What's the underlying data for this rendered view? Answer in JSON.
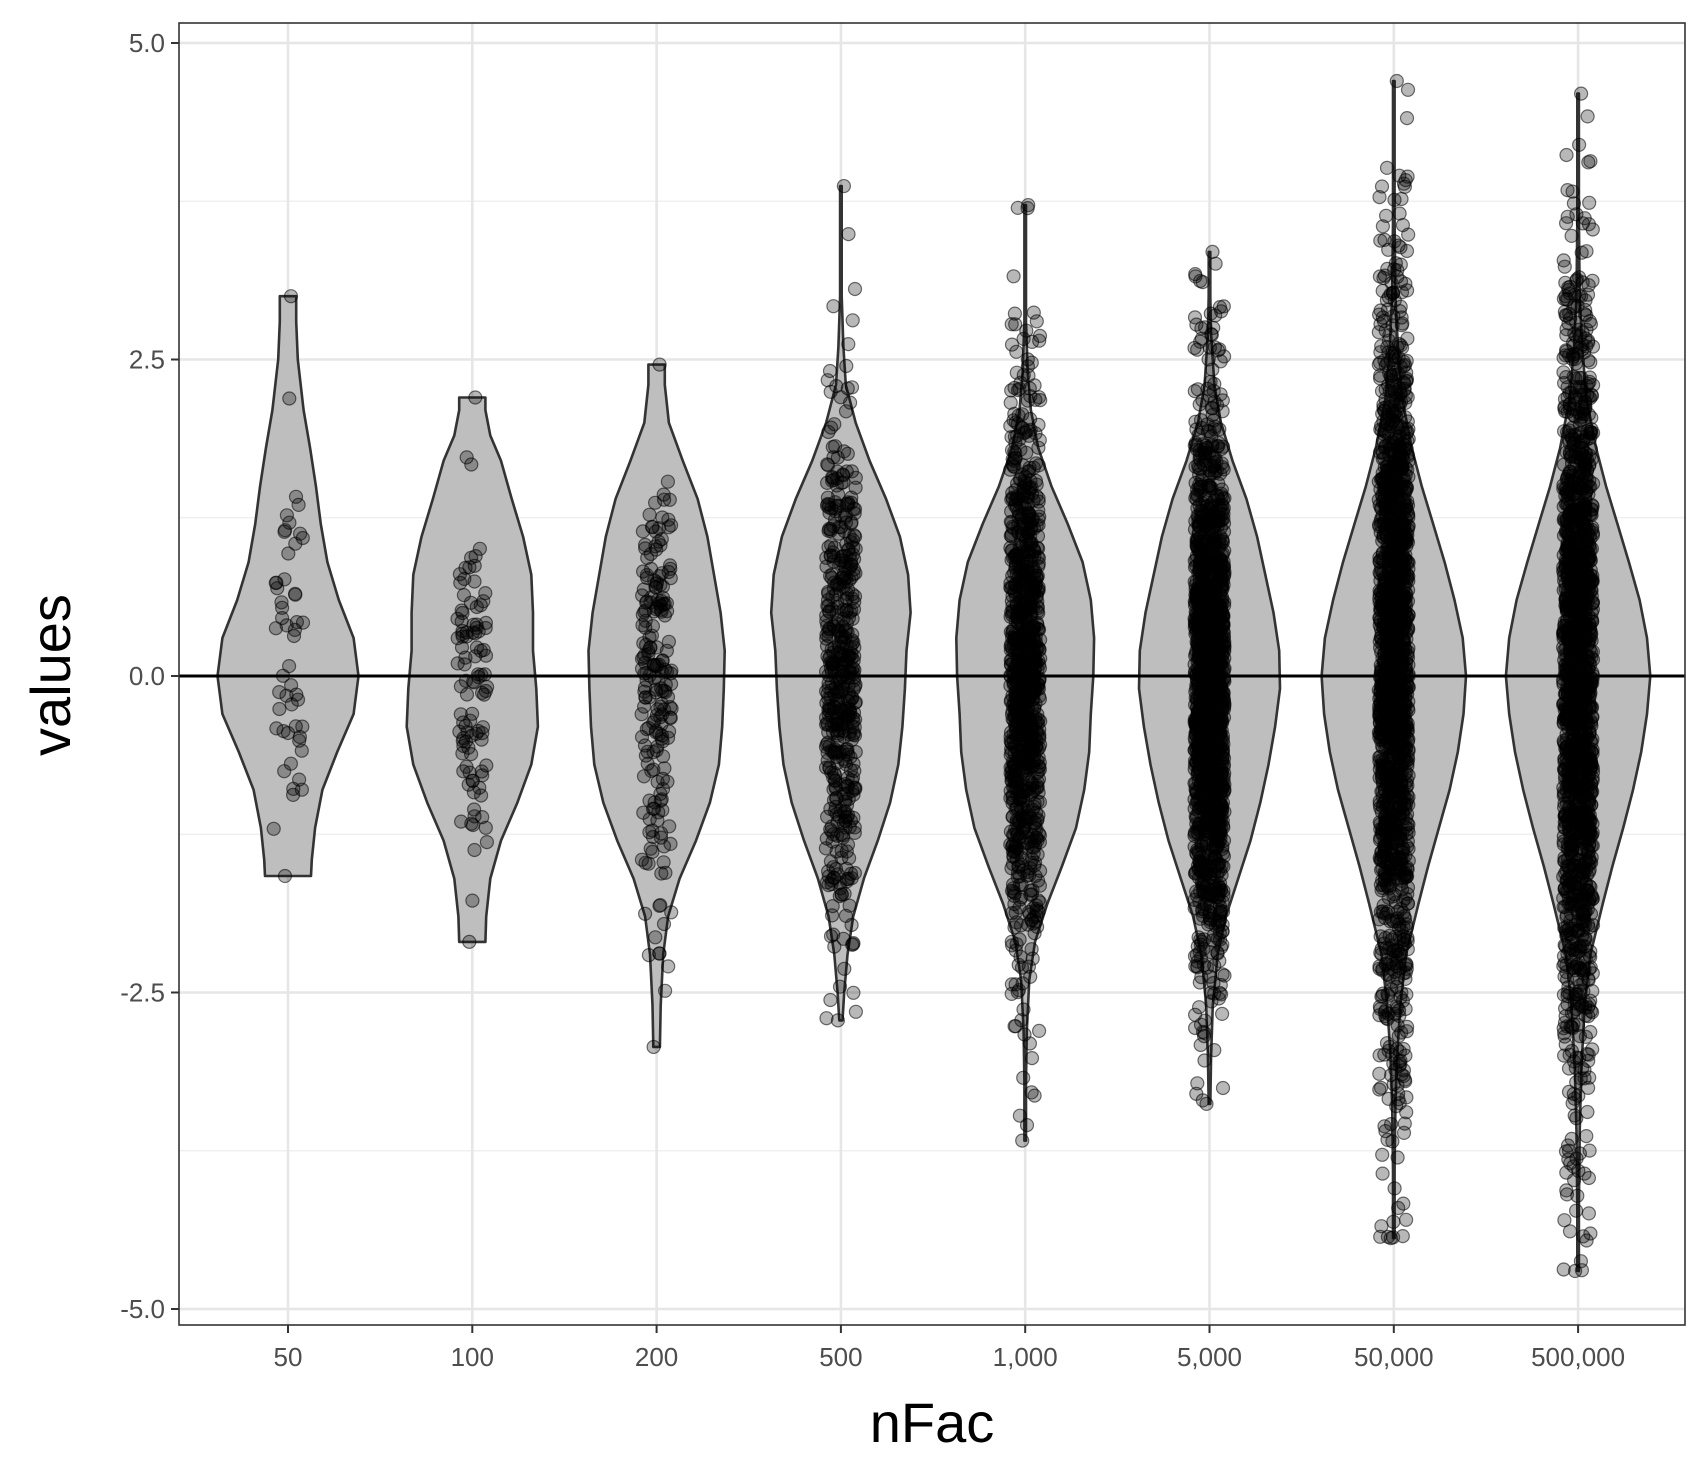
{
  "chart_data": {
    "type": "violin",
    "xlabel": "nFac",
    "ylabel": "values",
    "categories": [
      "50",
      "100",
      "200",
      "500",
      "1,000",
      "5,000",
      "50,000",
      "500,000"
    ],
    "y_ticks": [
      "5.0",
      "2.5",
      "0.0",
      "-2.5",
      "-5.0"
    ],
    "y_tick_values": [
      5.0,
      2.5,
      0.0,
      -2.5,
      -5.0
    ],
    "ylim": [
      -5.2,
      5.2
    ],
    "grid": true,
    "reference_line_y": 0,
    "violin_fill": "#bebebe",
    "violin_stroke": "#333333",
    "point_color": "#000000",
    "series": [
      {
        "category": "50",
        "n": 50,
        "min": -1.58,
        "max": 3.0,
        "density": [
          [
            -1.58,
            0.28
          ],
          [
            -1.45,
            0.29
          ],
          [
            -1.2,
            0.33
          ],
          [
            -0.9,
            0.42
          ],
          [
            -0.6,
            0.6
          ],
          [
            -0.3,
            0.8
          ],
          [
            0.0,
            0.86
          ],
          [
            0.3,
            0.8
          ],
          [
            0.6,
            0.62
          ],
          [
            0.9,
            0.48
          ],
          [
            1.2,
            0.4
          ],
          [
            1.5,
            0.34
          ],
          [
            1.8,
            0.27
          ],
          [
            2.1,
            0.19
          ],
          [
            2.5,
            0.12
          ],
          [
            2.8,
            0.1
          ],
          [
            3.0,
            0.1
          ]
        ]
      },
      {
        "category": "100",
        "n": 100,
        "min": -2.1,
        "max": 2.2,
        "density": [
          [
            -2.1,
            0.16
          ],
          [
            -1.9,
            0.17
          ],
          [
            -1.6,
            0.22
          ],
          [
            -1.3,
            0.35
          ],
          [
            -1.0,
            0.55
          ],
          [
            -0.7,
            0.72
          ],
          [
            -0.4,
            0.8
          ],
          [
            -0.1,
            0.78
          ],
          [
            0.2,
            0.74
          ],
          [
            0.5,
            0.74
          ],
          [
            0.8,
            0.72
          ],
          [
            1.1,
            0.62
          ],
          [
            1.4,
            0.48
          ],
          [
            1.7,
            0.35
          ],
          [
            1.9,
            0.22
          ],
          [
            2.1,
            0.16
          ],
          [
            2.2,
            0.16
          ]
        ]
      },
      {
        "category": "200",
        "n": 200,
        "min": -2.93,
        "max": 2.46,
        "density": [
          [
            -2.93,
            0.04
          ],
          [
            -2.6,
            0.05
          ],
          [
            -2.2,
            0.08
          ],
          [
            -1.9,
            0.14
          ],
          [
            -1.6,
            0.28
          ],
          [
            -1.3,
            0.48
          ],
          [
            -1.0,
            0.65
          ],
          [
            -0.7,
            0.76
          ],
          [
            -0.4,
            0.8
          ],
          [
            -0.1,
            0.82
          ],
          [
            0.2,
            0.83
          ],
          [
            0.5,
            0.78
          ],
          [
            0.8,
            0.7
          ],
          [
            1.1,
            0.62
          ],
          [
            1.4,
            0.5
          ],
          [
            1.7,
            0.32
          ],
          [
            2.0,
            0.15
          ],
          [
            2.3,
            0.1
          ],
          [
            2.46,
            0.1
          ]
        ]
      },
      {
        "category": "500",
        "n": 500,
        "min": -2.72,
        "max": 3.87,
        "density": [
          [
            -2.72,
            0.02
          ],
          [
            -2.5,
            0.04
          ],
          [
            -2.2,
            0.08
          ],
          [
            -1.9,
            0.15
          ],
          [
            -1.6,
            0.28
          ],
          [
            -1.3,
            0.45
          ],
          [
            -1.0,
            0.6
          ],
          [
            -0.7,
            0.7
          ],
          [
            -0.4,
            0.75
          ],
          [
            -0.1,
            0.78
          ],
          [
            0.2,
            0.8
          ],
          [
            0.5,
            0.85
          ],
          [
            0.8,
            0.82
          ],
          [
            1.1,
            0.72
          ],
          [
            1.4,
            0.55
          ],
          [
            1.7,
            0.35
          ],
          [
            2.0,
            0.18
          ],
          [
            2.3,
            0.06
          ],
          [
            2.6,
            0.03
          ],
          [
            3.0,
            0.01
          ],
          [
            3.5,
            0.01
          ],
          [
            3.87,
            0.01
          ]
        ]
      },
      {
        "category": "1,000",
        "n": 1000,
        "min": -3.67,
        "max": 3.72,
        "density": [
          [
            -3.67,
            0.01
          ],
          [
            -3.2,
            0.01
          ],
          [
            -2.8,
            0.02
          ],
          [
            -2.4,
            0.05
          ],
          [
            -2.1,
            0.12
          ],
          [
            -1.8,
            0.27
          ],
          [
            -1.5,
            0.45
          ],
          [
            -1.2,
            0.62
          ],
          [
            -0.9,
            0.72
          ],
          [
            -0.6,
            0.78
          ],
          [
            -0.3,
            0.8
          ],
          [
            0.0,
            0.83
          ],
          [
            0.3,
            0.84
          ],
          [
            0.6,
            0.8
          ],
          [
            0.9,
            0.7
          ],
          [
            1.2,
            0.52
          ],
          [
            1.5,
            0.32
          ],
          [
            1.8,
            0.16
          ],
          [
            2.1,
            0.07
          ],
          [
            2.4,
            0.03
          ],
          [
            2.8,
            0.01
          ],
          [
            3.2,
            0.01
          ],
          [
            3.72,
            0.01
          ]
        ]
      },
      {
        "category": "5,000",
        "n": 5000,
        "min": -3.38,
        "max": 3.35,
        "density": [
          [
            -3.38,
            0.01
          ],
          [
            -3.0,
            0.02
          ],
          [
            -2.6,
            0.04
          ],
          [
            -2.2,
            0.1
          ],
          [
            -1.9,
            0.2
          ],
          [
            -1.6,
            0.35
          ],
          [
            -1.3,
            0.5
          ],
          [
            -1.0,
            0.62
          ],
          [
            -0.7,
            0.72
          ],
          [
            -0.4,
            0.8
          ],
          [
            -0.1,
            0.86
          ],
          [
            0.2,
            0.85
          ],
          [
            0.5,
            0.78
          ],
          [
            0.8,
            0.68
          ],
          [
            1.1,
            0.58
          ],
          [
            1.4,
            0.45
          ],
          [
            1.7,
            0.28
          ],
          [
            2.0,
            0.14
          ],
          [
            2.3,
            0.06
          ],
          [
            2.7,
            0.02
          ],
          [
            3.0,
            0.01
          ],
          [
            3.35,
            0.01
          ]
        ]
      },
      {
        "category": "50,000",
        "n": 50000,
        "min": -4.44,
        "max": 4.7,
        "density": [
          [
            -4.44,
            0.01
          ],
          [
            -3.9,
            0.01
          ],
          [
            -3.4,
            0.02
          ],
          [
            -3.0,
            0.04
          ],
          [
            -2.6,
            0.08
          ],
          [
            -2.2,
            0.15
          ],
          [
            -1.8,
            0.3
          ],
          [
            -1.5,
            0.42
          ],
          [
            -1.2,
            0.55
          ],
          [
            -0.9,
            0.68
          ],
          [
            -0.6,
            0.78
          ],
          [
            -0.3,
            0.85
          ],
          [
            0.0,
            0.88
          ],
          [
            0.3,
            0.84
          ],
          [
            0.6,
            0.74
          ],
          [
            0.9,
            0.62
          ],
          [
            1.2,
            0.48
          ],
          [
            1.5,
            0.34
          ],
          [
            1.8,
            0.22
          ],
          [
            2.2,
            0.1
          ],
          [
            2.6,
            0.05
          ],
          [
            3.0,
            0.02
          ],
          [
            3.6,
            0.01
          ],
          [
            4.2,
            0.01
          ],
          [
            4.7,
            0.01
          ]
        ]
      },
      {
        "category": "500,000",
        "n": 500000,
        "min": -4.7,
        "max": 4.6,
        "density": [
          [
            -4.7,
            0.01
          ],
          [
            -4.2,
            0.01
          ],
          [
            -3.6,
            0.02
          ],
          [
            -3.1,
            0.04
          ],
          [
            -2.6,
            0.08
          ],
          [
            -2.2,
            0.15
          ],
          [
            -1.8,
            0.3
          ],
          [
            -1.5,
            0.42
          ],
          [
            -1.2,
            0.55
          ],
          [
            -0.9,
            0.67
          ],
          [
            -0.6,
            0.77
          ],
          [
            -0.3,
            0.84
          ],
          [
            0.0,
            0.88
          ],
          [
            0.3,
            0.84
          ],
          [
            0.6,
            0.75
          ],
          [
            0.9,
            0.62
          ],
          [
            1.2,
            0.48
          ],
          [
            1.5,
            0.34
          ],
          [
            1.8,
            0.22
          ],
          [
            2.2,
            0.1
          ],
          [
            2.6,
            0.05
          ],
          [
            3.0,
            0.02
          ],
          [
            3.6,
            0.01
          ],
          [
            4.1,
            0.01
          ],
          [
            4.6,
            0.01
          ]
        ]
      }
    ]
  }
}
